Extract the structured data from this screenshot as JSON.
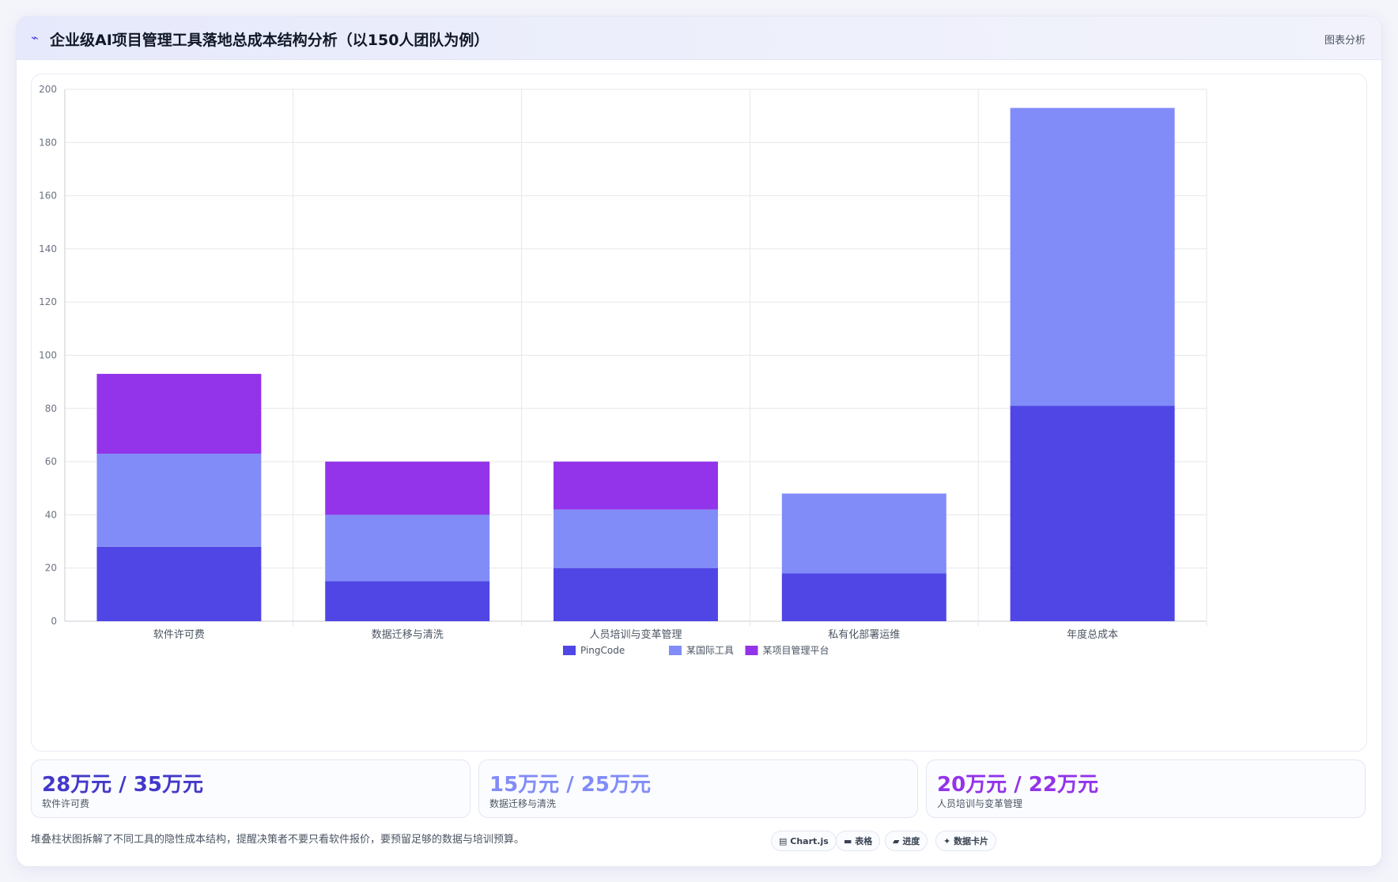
{
  "header": {
    "icon": "trend-icon",
    "title": "企业级AI项目管理工具落地总成本结构分析（以150人团队为例）",
    "action_label": "图表分析"
  },
  "chart_data": {
    "type": "bar",
    "stacked": true,
    "categories": [
      "软件许可费",
      "数据迁移与清洗",
      "人员培训与变革管理",
      "私有化部署运维",
      "年度总成本"
    ],
    "series": [
      {
        "name": "PingCode",
        "values": [
          28,
          15,
          20,
          18,
          81
        ],
        "color": "#4f46e5"
      },
      {
        "name": "某国际工具",
        "values": [
          35,
          25,
          22,
          30,
          112
        ],
        "color": "#818cf8"
      },
      {
        "name": "某项目管理平台",
        "values": [
          30,
          20,
          18,
          0,
          0
        ],
        "color": "#9333ea"
      }
    ],
    "ylim": [
      0,
      200
    ],
    "yticks": [
      0,
      20,
      40,
      60,
      80,
      100,
      120,
      140,
      160,
      180,
      200
    ],
    "grid": true,
    "legend": "bottom",
    "title": "",
    "xlabel": "",
    "ylabel": ""
  },
  "stats": [
    {
      "value": "28万元 / 35万元",
      "label": "软件许可费",
      "color": "#4338ca"
    },
    {
      "value": "15万元 / 25万元",
      "label": "数据迁移与清洗",
      "color": "#818cf8"
    },
    {
      "value": "20万元 / 22万元",
      "label": "人员培训与变革管理",
      "color": "#9333ea"
    }
  ],
  "footer": {
    "note": "堆叠柱状图拆解了不同工具的隐性成本结构，提醒决策者不要只看软件报价，要预留足够的数据与培训预算。",
    "chips": [
      {
        "icon": "chart-icon",
        "glyph": "▤",
        "label": "Chart.js"
      },
      {
        "icon": "table-icon",
        "glyph": "▬",
        "label": "表格"
      },
      {
        "icon": "progress-icon",
        "glyph": "▰",
        "label": "进度"
      },
      {
        "icon": "sparkle-icon",
        "glyph": "✦",
        "label": "数据卡片"
      }
    ]
  }
}
